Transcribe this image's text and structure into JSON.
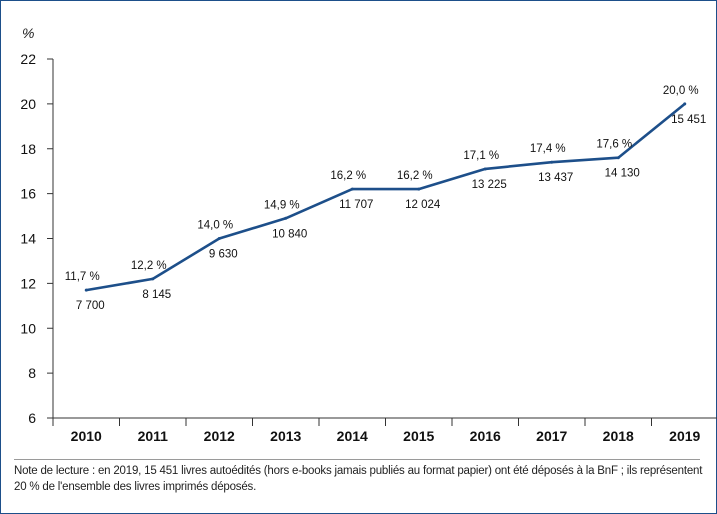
{
  "chart_data": {
    "type": "line",
    "ylabel": "%",
    "ylim": [
      6,
      22
    ],
    "yticks": [
      6,
      8,
      10,
      12,
      14,
      16,
      18,
      20,
      22
    ],
    "categories": [
      "2010",
      "2011",
      "2012",
      "2013",
      "2014",
      "2015",
      "2016",
      "2017",
      "2018",
      "2019"
    ],
    "series": [
      {
        "values": [
          11.7,
          12.2,
          14.0,
          14.9,
          16.2,
          16.2,
          17.1,
          17.4,
          17.6,
          20.0
        ],
        "value_labels": [
          "11,7 %",
          "12,2 %",
          "14,0 %",
          "14,9 %",
          "16,2 %",
          "16,2 %",
          "17,1 %",
          "17,4 %",
          "17,6 %",
          "20,0 %"
        ],
        "counts": [
          7700,
          8145,
          9630,
          10840,
          11707,
          12024,
          13225,
          13437,
          14130,
          15451
        ],
        "count_labels": [
          "7 700",
          "8 145",
          "9 630",
          "10 840",
          "11 707",
          "12 024",
          "13 225",
          "13 437",
          "14 130",
          "15 451"
        ]
      }
    ],
    "line_color": "#1d4f8a",
    "axis_color": "#333333",
    "grid": false
  },
  "note": "Note de lecture : en 2019, 15 451 livres autoédités (hors e-books jamais publiés au format papier) ont été déposés à la BnF ; ils représentent 20 % de l'ensemble des livres imprimés déposés."
}
